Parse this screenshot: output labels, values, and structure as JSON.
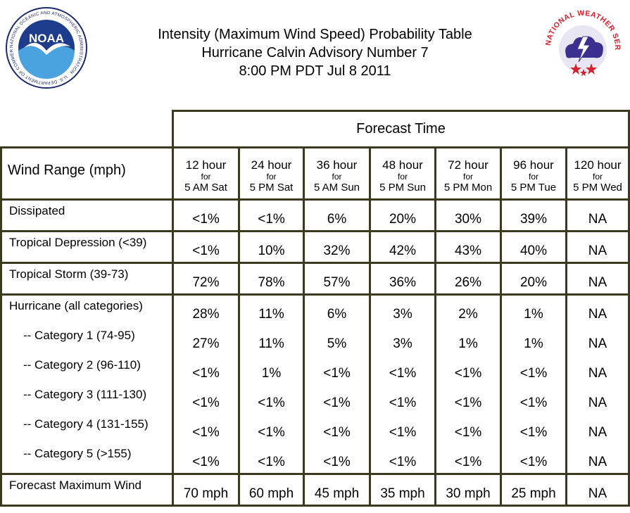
{
  "header": {
    "title_lines": [
      "Intensity (Maximum Wind Speed) Probability Table",
      "Hurricane Calvin Advisory Number 7",
      "8:00 PM PDT Jul 8 2011"
    ],
    "noaa_logo": {
      "text": "NOAA",
      "ring_text": "NATIONAL OCEANIC AND ATMOSPHERIC ADMINISTRATION · U.S. DEPARTMENT OF COMMERCE"
    },
    "nws_logo": {
      "ring_text": "NATIONAL WEATHER SERVICE"
    }
  },
  "table": {
    "forecast_title": "Forecast Time",
    "row_header_title": "Wind Range (mph)",
    "columns": [
      {
        "hours": "12 hour",
        "for": "for",
        "when": "5 AM Sat"
      },
      {
        "hours": "24 hour",
        "for": "for",
        "when": "5 PM Sat"
      },
      {
        "hours": "36 hour",
        "for": "for",
        "when": "5 AM Sun"
      },
      {
        "hours": "48 hour",
        "for": "for",
        "when": "5 PM Sun"
      },
      {
        "hours": "72 hour",
        "for": "for",
        "when": "5 PM Mon"
      },
      {
        "hours": "96 hour",
        "for": "for",
        "when": "5 PM Tue"
      },
      {
        "hours": "120 hour",
        "for": "for",
        "when": "5 PM Wed"
      }
    ],
    "groups": [
      {
        "rows": [
          {
            "label": "Dissipated",
            "sub": false,
            "values": [
              "<1%",
              "<1%",
              "6%",
              "20%",
              "30%",
              "39%",
              "NA"
            ]
          }
        ]
      },
      {
        "rows": [
          {
            "label": "Tropical Depression (<39)",
            "sub": false,
            "values": [
              "<1%",
              "10%",
              "32%",
              "42%",
              "43%",
              "40%",
              "NA"
            ]
          }
        ]
      },
      {
        "rows": [
          {
            "label": "Tropical Storm (39-73)",
            "sub": false,
            "values": [
              "72%",
              "78%",
              "57%",
              "36%",
              "26%",
              "20%",
              "NA"
            ]
          }
        ]
      },
      {
        "rows": [
          {
            "label": "Hurricane (all categories)",
            "sub": false,
            "values": [
              "28%",
              "11%",
              "6%",
              "3%",
              "2%",
              "1%",
              "NA"
            ]
          },
          {
            "label": "-- Category 1 (74-95)",
            "sub": true,
            "values": [
              "27%",
              "11%",
              "5%",
              "3%",
              "1%",
              "1%",
              "NA"
            ]
          },
          {
            "label": "-- Category 2 (96-110)",
            "sub": true,
            "values": [
              "<1%",
              "1%",
              "<1%",
              "<1%",
              "<1%",
              "<1%",
              "NA"
            ]
          },
          {
            "label": "-- Category 3 (111-130)",
            "sub": true,
            "values": [
              "<1%",
              "<1%",
              "<1%",
              "<1%",
              "<1%",
              "<1%",
              "NA"
            ]
          },
          {
            "label": "-- Category 4 (131-155)",
            "sub": true,
            "values": [
              "<1%",
              "<1%",
              "<1%",
              "<1%",
              "<1%",
              "<1%",
              "NA"
            ]
          },
          {
            "label": "-- Category 5 (>155)",
            "sub": true,
            "values": [
              "<1%",
              "<1%",
              "<1%",
              "<1%",
              "<1%",
              "<1%",
              "NA"
            ]
          }
        ]
      },
      {
        "rows": [
          {
            "label": "Forecast Maximum Wind",
            "sub": false,
            "values": [
              "70 mph",
              "60 mph",
              "45 mph",
              "35 mph",
              "30 mph",
              "25 mph",
              "NA"
            ]
          }
        ]
      }
    ]
  }
}
